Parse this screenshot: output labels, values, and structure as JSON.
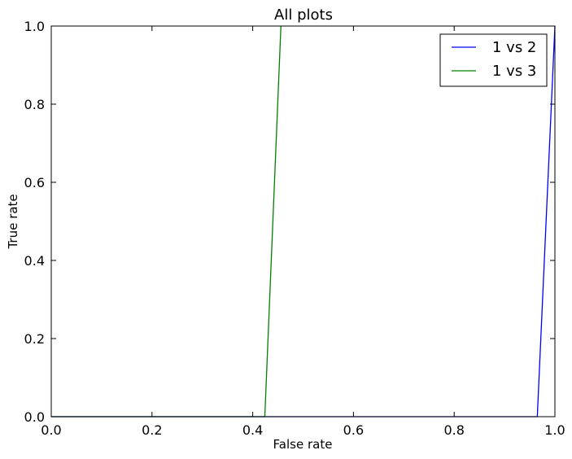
{
  "chart_data": {
    "type": "line",
    "title": "All plots",
    "xlabel": "False rate",
    "ylabel": "True rate",
    "xlim": [
      0.0,
      1.0
    ],
    "ylim": [
      0.0,
      1.0
    ],
    "xticks": [
      "0.0",
      "0.2",
      "0.4",
      "0.6",
      "0.8",
      "1.0"
    ],
    "yticks": [
      "0.0",
      "0.2",
      "0.4",
      "0.6",
      "0.8",
      "1.0"
    ],
    "grid": false,
    "legend_position": "top-right",
    "series": [
      {
        "name": "1 vs 2",
        "color": "#0000ff",
        "x": [
          0.0,
          0.965,
          1.0
        ],
        "y": [
          0.0,
          0.0,
          1.0
        ]
      },
      {
        "name": "1 vs 3",
        "color": "#008000",
        "x": [
          0.0,
          0.424,
          0.456
        ],
        "y": [
          0.0,
          0.0,
          1.0
        ]
      }
    ]
  }
}
